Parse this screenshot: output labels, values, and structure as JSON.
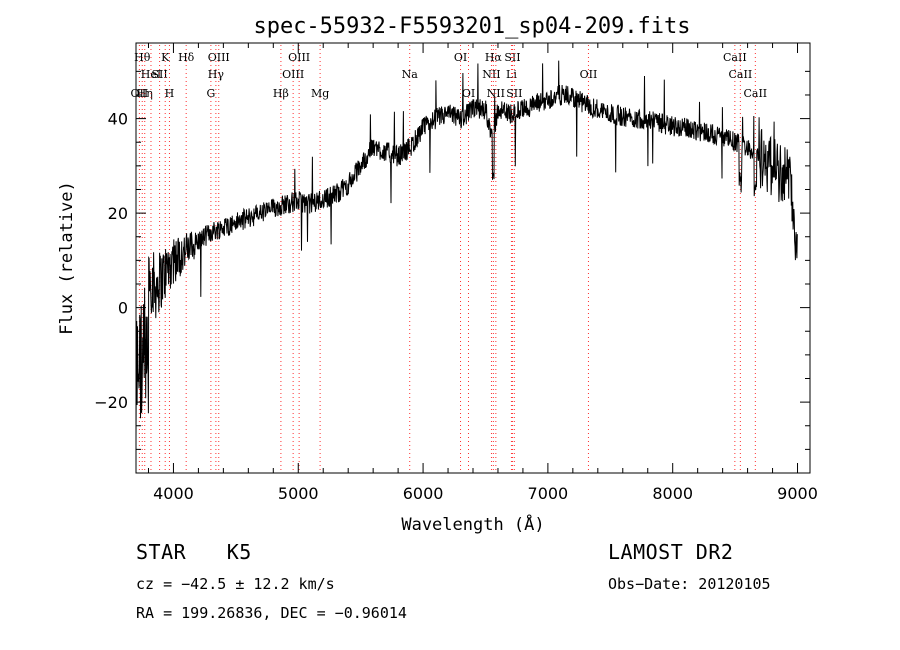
{
  "chart_data": {
    "type": "line",
    "title": "spec-55932-F5593201_sp04-209.fits",
    "xlabel": "Wavelength (Å)",
    "ylabel": "Flux (relative)",
    "xlim": [
      3700,
      9100
    ],
    "ylim": [
      -35,
      56
    ],
    "xticks": [
      4000,
      5000,
      6000,
      7000,
      8000,
      9000
    ],
    "xtick_labels": [
      "4000",
      "5000",
      "6000",
      "7000",
      "8000",
      "9000"
    ],
    "yticks": [
      -20,
      0,
      20,
      40
    ],
    "ytick_labels": [
      "−20",
      "0",
      "20",
      "40"
    ],
    "grid": false,
    "series": [
      {
        "x": [
          3700,
          3750,
          3800,
          3850,
          3900,
          3950,
          4000,
          4100,
          4200,
          4300,
          4400,
          4500,
          4600,
          4700,
          4800,
          4900,
          5000,
          5100,
          5200,
          5300,
          5400,
          5500,
          5600,
          5700,
          5800,
          5900,
          6000,
          6100,
          6200,
          6300,
          6400,
          6500,
          6560,
          6600,
          6700,
          6800,
          6900,
          7000,
          7100,
          7200,
          7300,
          7400,
          7500,
          7600,
          7700,
          7800,
          7900,
          8000,
          8100,
          8200,
          8300,
          8400,
          8500,
          8600,
          8700,
          8800,
          8900,
          8950,
          9000
        ],
        "y": [
          -5,
          5,
          8,
          4,
          6,
          8,
          10,
          12,
          14,
          16,
          17,
          18,
          19,
          20,
          21,
          22,
          22.5,
          22,
          23,
          24,
          26,
          30,
          34,
          33,
          32,
          34,
          38,
          40,
          41,
          40,
          42,
          42,
          36,
          42,
          41,
          42,
          43,
          44,
          45,
          44.5,
          43,
          42,
          41,
          40.5,
          40,
          40,
          39,
          38.5,
          38,
          37.5,
          37,
          36,
          35,
          34,
          32,
          30,
          28,
          26,
          10
        ]
      }
    ],
    "lines": [
      {
        "x": 3727,
        "label": "OII",
        "row": 3
      },
      {
        "x": 3750,
        "label": "Hθ",
        "row": 1
      },
      {
        "x": 3770,
        "label": "Hη",
        "row": 3
      },
      {
        "x": 3820,
        "label": "HeI",
        "row": 2
      },
      {
        "x": 3889,
        "label": "SII",
        "row": 2
      },
      {
        "x": 3934,
        "label": "K",
        "row": 1
      },
      {
        "x": 3968,
        "label": "H",
        "row": 3
      },
      {
        "x": 4102,
        "label": "Hδ",
        "row": 1
      },
      {
        "x": 4300,
        "label": "G",
        "row": 3
      },
      {
        "x": 4340,
        "label": "Hγ",
        "row": 2
      },
      {
        "x": 4363,
        "label": "OIII",
        "row": 1
      },
      {
        "x": 4861,
        "label": "Hβ",
        "row": 3
      },
      {
        "x": 4959,
        "label": "OIII",
        "row": 2
      },
      {
        "x": 5007,
        "label": "OIII",
        "row": 1
      },
      {
        "x": 5175,
        "label": "Mg",
        "row": 3
      },
      {
        "x": 5893,
        "label": "Na",
        "row": 2
      },
      {
        "x": 6300,
        "label": "OI",
        "row": 1
      },
      {
        "x": 6364,
        "label": "OI",
        "row": 3
      },
      {
        "x": 6548,
        "label": "NII",
        "row": 2
      },
      {
        "x": 6563,
        "label": "Hα",
        "row": 1
      },
      {
        "x": 6583,
        "label": "NII",
        "row": 3
      },
      {
        "x": 6708,
        "label": "Li",
        "row": 2
      },
      {
        "x": 6716,
        "label": "SII",
        "row": 1
      },
      {
        "x": 6731,
        "label": "SII",
        "row": 3
      },
      {
        "x": 7325,
        "label": "OII",
        "row": 2
      },
      {
        "x": 8498,
        "label": "CaII",
        "row": 1
      },
      {
        "x": 8542,
        "label": "CaII",
        "row": 2
      },
      {
        "x": 8662,
        "label": "CaII",
        "row": 3
      }
    ]
  },
  "info": {
    "class": "STAR",
    "subclass": "K5",
    "survey": "LAMOST DR2",
    "cz": "cz = −42.5 ± 12.2 km/s",
    "obs_date": "Obs−Date: 20120105",
    "radec": "RA = 199.26836, DEC =  −0.96014"
  }
}
